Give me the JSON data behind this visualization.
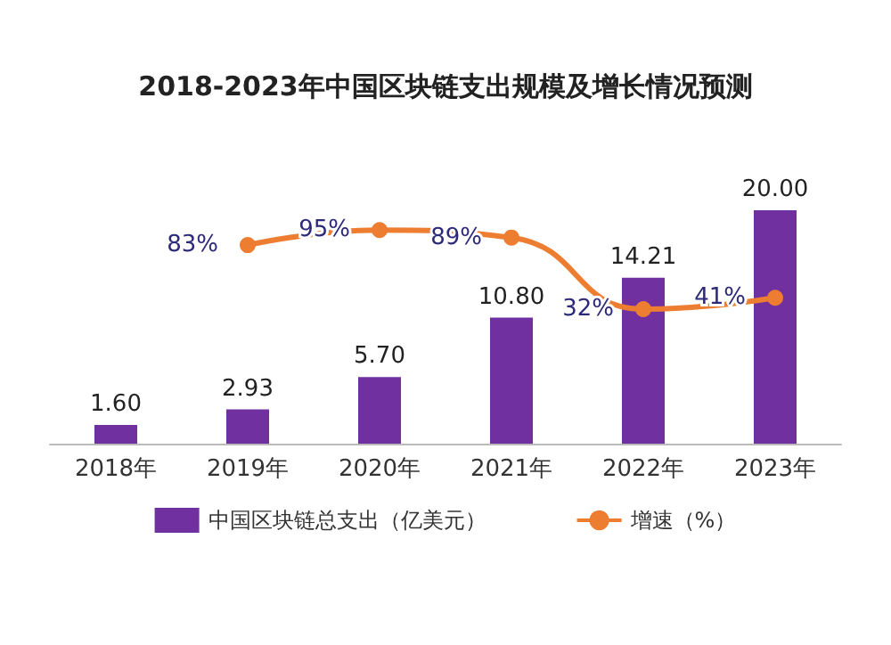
{
  "chart_data": {
    "type": "bar",
    "title": "2018-2023年中国区块链支出规模及增长情况预测",
    "categories": [
      "2018年",
      "2019年",
      "2020年",
      "2021年",
      "2022年",
      "2023年"
    ],
    "series": [
      {
        "name": "中国区块链总支出（亿美元）",
        "color": "#7030a0",
        "values": [
          1.6,
          2.93,
          5.7,
          10.8,
          14.21,
          20.0
        ],
        "value_labels": [
          "1.60",
          "2.93",
          "5.70",
          "10.80",
          "14.21",
          "20.00"
        ]
      },
      {
        "name": "增速（%）",
        "type": "line",
        "axis": "y2",
        "color": "#ed7d31",
        "values": [
          null,
          83,
          95,
          89,
          32,
          41
        ],
        "value_labels": [
          null,
          "83%",
          "95%",
          "89%",
          "32%",
          "41%"
        ]
      }
    ],
    "grid": false,
    "legend": "bottom",
    "marker": "circle",
    "line_style": "solid"
  }
}
